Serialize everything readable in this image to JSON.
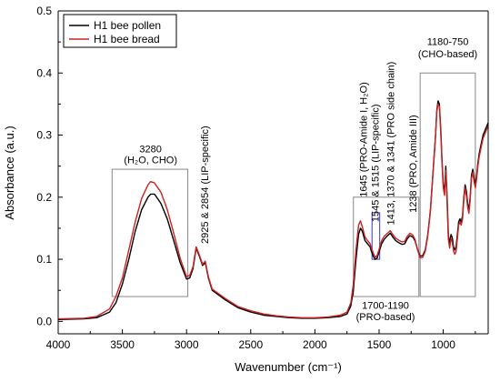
{
  "chart_data": {
    "type": "line",
    "xlabel": "Wavenumber (cm⁻¹)",
    "ylabel": "Absorbance (a.u.)",
    "xlim": [
      4000,
      650
    ],
    "ylim": [
      -0.02,
      0.5
    ],
    "x_ticks": [
      4000,
      3500,
      3000,
      2500,
      2000,
      1500,
      1000
    ],
    "x_tick_labels": [
      "4000",
      "3500",
      "3000",
      "2500",
      "2000",
      "1500",
      "1000"
    ],
    "y_ticks": [
      0.0,
      0.1,
      0.2,
      0.3,
      0.4,
      0.5
    ],
    "y_tick_labels": [
      "0.0",
      "0.1",
      "0.2",
      "0.3",
      "0.4",
      "0.5"
    ],
    "legend_position": "top-left",
    "series": [
      {
        "name": "H1 bee pollen",
        "color": "#000000",
        "x": [
          4000,
          3800,
          3700,
          3600,
          3550,
          3500,
          3450,
          3400,
          3350,
          3300,
          3280,
          3250,
          3200,
          3150,
          3100,
          3050,
          3000,
          2975,
          2950,
          2925,
          2900,
          2875,
          2854,
          2830,
          2800,
          2700,
          2600,
          2500,
          2400,
          2300,
          2200,
          2100,
          2000,
          1900,
          1800,
          1750,
          1720,
          1700,
          1680,
          1660,
          1645,
          1630,
          1610,
          1590,
          1570,
          1560,
          1545,
          1530,
          1515,
          1500,
          1480,
          1460,
          1440,
          1413,
          1390,
          1370,
          1341,
          1320,
          1300,
          1280,
          1260,
          1238,
          1220,
          1200,
          1180,
          1160,
          1140,
          1120,
          1100,
          1080,
          1060,
          1050,
          1040,
          1030,
          1020,
          1010,
          1000,
          990,
          980,
          970,
          960,
          950,
          940,
          930,
          920,
          910,
          900,
          890,
          880,
          870,
          860,
          850,
          840,
          830,
          820,
          810,
          800,
          790,
          780,
          770,
          760,
          750,
          740,
          730,
          720,
          710,
          700,
          690,
          680,
          670,
          660,
          650
        ],
        "y": [
          0.003,
          0.004,
          0.006,
          0.015,
          0.03,
          0.06,
          0.1,
          0.145,
          0.18,
          0.2,
          0.205,
          0.205,
          0.19,
          0.165,
          0.13,
          0.095,
          0.068,
          0.07,
          0.085,
          0.118,
          0.105,
          0.09,
          0.095,
          0.07,
          0.05,
          0.035,
          0.022,
          0.015,
          0.01,
          0.008,
          0.006,
          0.005,
          0.005,
          0.006,
          0.008,
          0.012,
          0.025,
          0.05,
          0.1,
          0.14,
          0.15,
          0.145,
          0.13,
          0.125,
          0.12,
          0.113,
          0.105,
          0.1,
          0.102,
          0.112,
          0.125,
          0.132,
          0.137,
          0.142,
          0.135,
          0.13,
          0.126,
          0.124,
          0.125,
          0.133,
          0.138,
          0.136,
          0.13,
          0.116,
          0.105,
          0.106,
          0.115,
          0.14,
          0.18,
          0.24,
          0.3,
          0.34,
          0.355,
          0.35,
          0.31,
          0.26,
          0.22,
          0.21,
          0.25,
          0.2,
          0.14,
          0.125,
          0.14,
          0.135,
          0.12,
          0.115,
          0.12,
          0.14,
          0.16,
          0.165,
          0.16,
          0.17,
          0.2,
          0.22,
          0.21,
          0.19,
          0.18,
          0.2,
          0.235,
          0.245,
          0.23,
          0.22,
          0.235,
          0.255,
          0.27,
          0.28,
          0.29,
          0.3,
          0.305,
          0.31,
          0.315,
          0.32
        ]
      },
      {
        "name": "H1 bee bread",
        "color": "#cc2222",
        "x": [
          4000,
          3800,
          3700,
          3600,
          3550,
          3500,
          3450,
          3400,
          3350,
          3300,
          3280,
          3250,
          3200,
          3150,
          3100,
          3050,
          3000,
          2975,
          2950,
          2925,
          2900,
          2875,
          2854,
          2830,
          2800,
          2700,
          2600,
          2500,
          2400,
          2300,
          2200,
          2100,
          2000,
          1900,
          1800,
          1750,
          1720,
          1700,
          1680,
          1660,
          1645,
          1630,
          1610,
          1590,
          1570,
          1560,
          1545,
          1530,
          1515,
          1500,
          1480,
          1460,
          1440,
          1413,
          1390,
          1370,
          1341,
          1320,
          1300,
          1280,
          1260,
          1238,
          1220,
          1200,
          1180,
          1160,
          1140,
          1120,
          1100,
          1080,
          1060,
          1050,
          1040,
          1030,
          1020,
          1010,
          1000,
          990,
          980,
          970,
          960,
          950,
          940,
          930,
          920,
          910,
          900,
          890,
          880,
          870,
          860,
          850,
          840,
          830,
          820,
          810,
          800,
          790,
          780,
          770,
          760,
          750,
          740,
          730,
          720,
          710,
          700,
          690,
          680,
          670,
          660,
          650
        ],
        "y": [
          0.004,
          0.005,
          0.008,
          0.02,
          0.04,
          0.07,
          0.115,
          0.16,
          0.198,
          0.22,
          0.225,
          0.223,
          0.208,
          0.18,
          0.142,
          0.102,
          0.072,
          0.074,
          0.088,
          0.12,
          0.107,
          0.092,
          0.097,
          0.072,
          0.052,
          0.037,
          0.024,
          0.017,
          0.012,
          0.009,
          0.007,
          0.006,
          0.006,
          0.007,
          0.01,
          0.015,
          0.03,
          0.06,
          0.115,
          0.155,
          0.162,
          0.152,
          0.136,
          0.13,
          0.125,
          0.118,
          0.11,
          0.103,
          0.106,
          0.116,
          0.13,
          0.137,
          0.141,
          0.146,
          0.139,
          0.134,
          0.13,
          0.128,
          0.129,
          0.137,
          0.142,
          0.139,
          0.132,
          0.115,
          0.102,
          0.103,
          0.113,
          0.138,
          0.178,
          0.238,
          0.298,
          0.338,
          0.35,
          0.346,
          0.305,
          0.255,
          0.215,
          0.203,
          0.243,
          0.19,
          0.132,
          0.118,
          0.133,
          0.128,
          0.113,
          0.108,
          0.113,
          0.133,
          0.155,
          0.16,
          0.155,
          0.165,
          0.195,
          0.215,
          0.203,
          0.184,
          0.174,
          0.195,
          0.23,
          0.24,
          0.225,
          0.215,
          0.23,
          0.25,
          0.265,
          0.275,
          0.285,
          0.295,
          0.3,
          0.305,
          0.31,
          0.315
        ]
      }
    ],
    "annotations": [
      {
        "text": "3280",
        "x": 3280,
        "y": 0.272
      },
      {
        "text": "(H₂O, CHO)",
        "x": 3280,
        "y": 0.255
      },
      {
        "text": "2925 & 2854 (LIP-specific)",
        "x": 2860,
        "y": 0.125,
        "rotate": true
      },
      {
        "text": "1645 (PRO-Amide I, H₂O)",
        "x": 1625,
        "y": 0.2,
        "rotate": true
      },
      {
        "text": "1545 & 1515 (LIP-specific)",
        "x": 1530,
        "y": 0.16,
        "rotate": true
      },
      {
        "text": "1413, 1370 & 1341 (PRO side chain)",
        "x": 1412,
        "y": 0.155,
        "rotate": true
      },
      {
        "text": "1238 (PRO, Amide III)",
        "x": 1238,
        "y": 0.175,
        "rotate": true
      },
      {
        "text": "1180-750",
        "x": 965,
        "y": 0.445
      },
      {
        "text": "(CHO-based)",
        "x": 965,
        "y": 0.425
      },
      {
        "text": "1700-1190",
        "x": 1450,
        "y": 0.02
      },
      {
        "text": "(PRO-based)",
        "x": 1450,
        "y": 0.002
      }
    ],
    "boxes": [
      {
        "x0": 3580,
        "x1": 2990,
        "y0": 0.04,
        "y1": 0.245,
        "color": "#888888"
      },
      {
        "x0": 1700,
        "x1": 1190,
        "y0": 0.04,
        "y1": 0.2,
        "color": "#888888"
      },
      {
        "x0": 1180,
        "x1": 750,
        "y0": 0.04,
        "y1": 0.4,
        "color": "#888888"
      },
      {
        "x0": 1555,
        "x1": 1495,
        "y0": 0.1,
        "y1": 0.175,
        "color": "#3333cc"
      }
    ],
    "legend": [
      {
        "label": "H1 bee pollen",
        "color": "#000000"
      },
      {
        "label": "H1 bee bread",
        "color": "#cc2222"
      }
    ]
  }
}
